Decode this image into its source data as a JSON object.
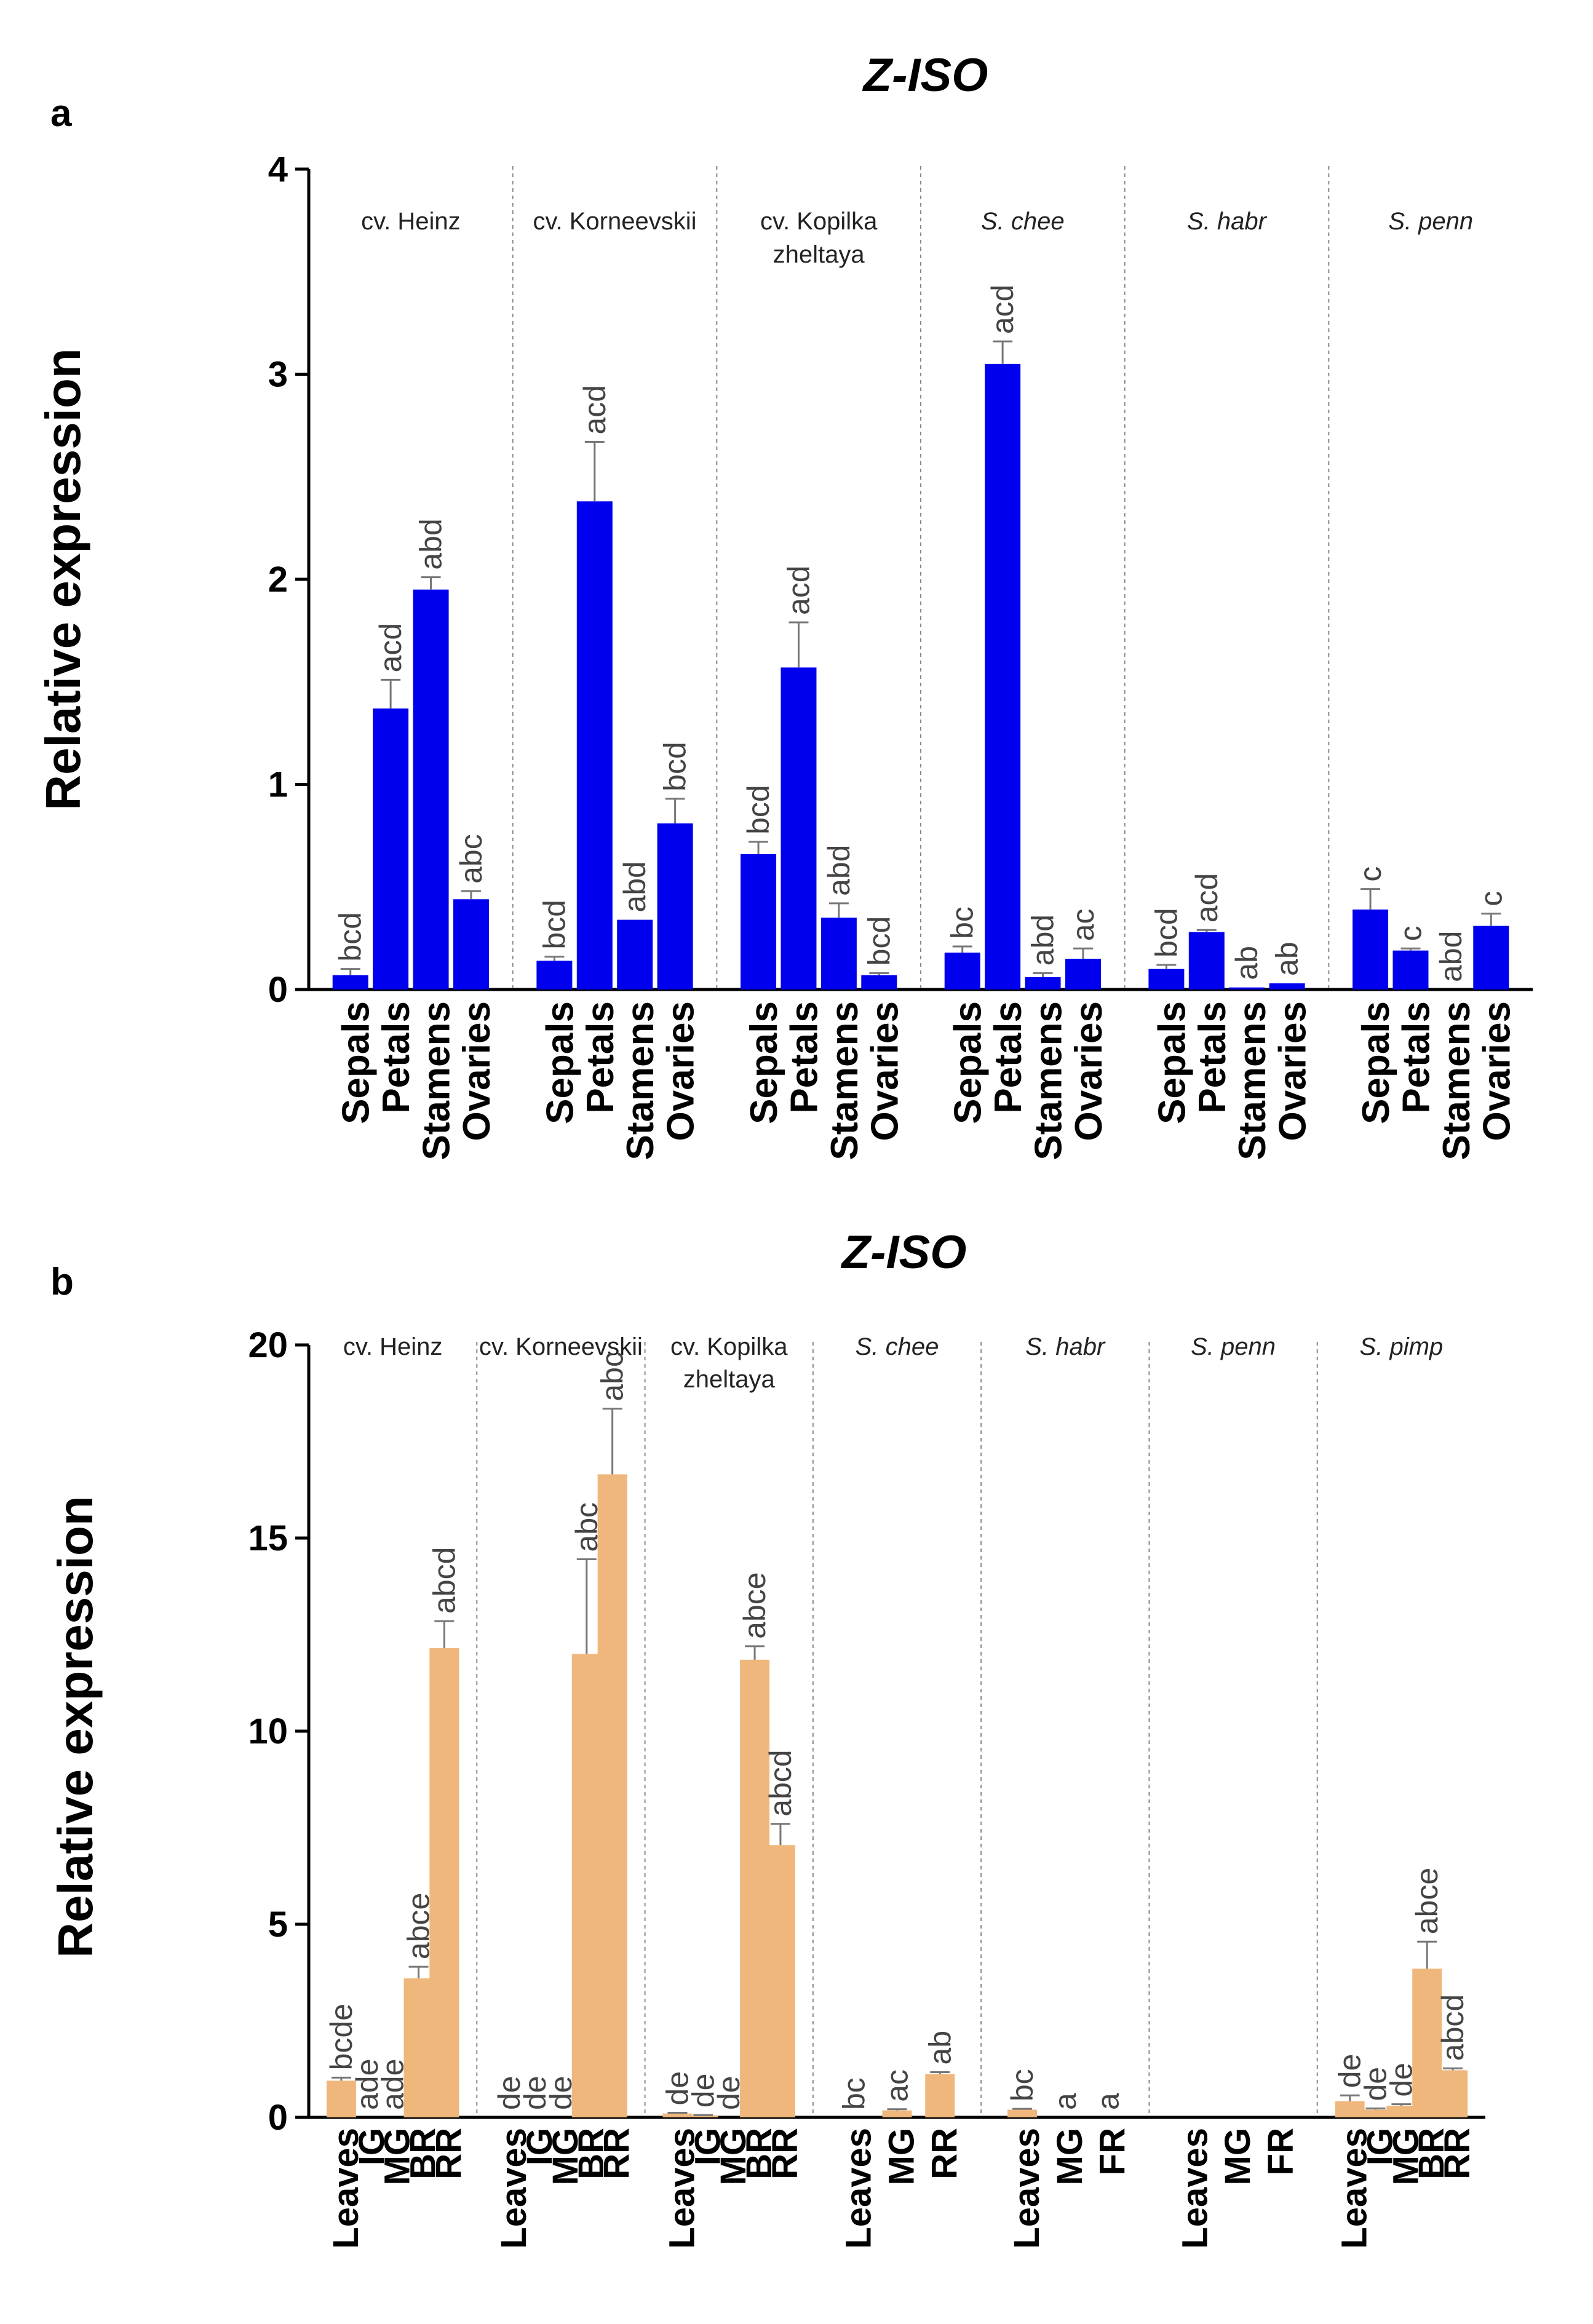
{
  "chart_data": [
    {
      "id": "a",
      "type": "bar",
      "panel_label": "a",
      "title": "Z-ISO",
      "ylabel": "Relative expression",
      "xlabel": "",
      "ylim": [
        0,
        4
      ],
      "yticks": [
        "0",
        "1",
        "2",
        "3",
        "4"
      ],
      "ytick_values": [
        0,
        1,
        2,
        3,
        4
      ],
      "bar_color": "#0000ee",
      "error_color": "#777777",
      "groups": [
        {
          "label": "cv. Heinz",
          "italic": false,
          "bars": [
            {
              "category": "Sepals",
              "value": 0.07,
              "error": 0.03,
              "sig": "bcd"
            },
            {
              "category": "Petals",
              "value": 1.37,
              "error": 0.14,
              "sig": "acd"
            },
            {
              "category": "Stamens",
              "value": 1.95,
              "error": 0.06,
              "sig": "abd"
            },
            {
              "category": "Ovaries",
              "value": 0.44,
              "error": 0.04,
              "sig": "abc"
            }
          ]
        },
        {
          "label": "cv. Korneevskii",
          "italic": false,
          "bars": [
            {
              "category": "Sepals",
              "value": 0.14,
              "error": 0.02,
              "sig": "bcd"
            },
            {
              "category": "Petals",
              "value": 2.38,
              "error": 0.29,
              "sig": "acd"
            },
            {
              "category": "Stamens",
              "value": 0.34,
              "error": 0.0,
              "sig": "abd"
            },
            {
              "category": "Ovaries",
              "value": 0.81,
              "error": 0.12,
              "sig": "bcd"
            }
          ]
        },
        {
          "label": "cv. Kopilka zheltaya",
          "italic": false,
          "bars": [
            {
              "category": "Sepals",
              "value": 0.66,
              "error": 0.06,
              "sig": "bcd"
            },
            {
              "category": "Petals",
              "value": 1.57,
              "error": 0.22,
              "sig": "acd"
            },
            {
              "category": "Stamens",
              "value": 0.35,
              "error": 0.07,
              "sig": "abd"
            },
            {
              "category": "Ovaries",
              "value": 0.07,
              "error": 0.01,
              "sig": "bcd"
            }
          ]
        },
        {
          "label": "S. chee",
          "italic": true,
          "bars": [
            {
              "category": "Sepals",
              "value": 0.18,
              "error": 0.03,
              "sig": "bc"
            },
            {
              "category": "Petals",
              "value": 3.05,
              "error": 0.11,
              "sig": "acd"
            },
            {
              "category": "Stamens",
              "value": 0.06,
              "error": 0.02,
              "sig": "abd"
            },
            {
              "category": "Ovaries",
              "value": 0.15,
              "error": 0.05,
              "sig": "ac"
            }
          ]
        },
        {
          "label": "S. habr",
          "italic": true,
          "bars": [
            {
              "category": "Sepals",
              "value": 0.1,
              "error": 0.02,
              "sig": "bcd"
            },
            {
              "category": "Petals",
              "value": 0.28,
              "error": 0.01,
              "sig": "acd"
            },
            {
              "category": "Stamens",
              "value": 0.01,
              "error": 0.0,
              "sig": "ab"
            },
            {
              "category": "Ovaries",
              "value": 0.03,
              "error": 0.0,
              "sig": "ab"
            }
          ]
        },
        {
          "label": "S. penn",
          "italic": true,
          "bars": [
            {
              "category": "Sepals",
              "value": 0.39,
              "error": 0.1,
              "sig": "c"
            },
            {
              "category": "Petals",
              "value": 0.19,
              "error": 0.01,
              "sig": "c"
            },
            {
              "category": "Stamens",
              "value": 0.0,
              "error": 0.0,
              "sig": "abd"
            },
            {
              "category": "Ovaries",
              "value": 0.31,
              "error": 0.06,
              "sig": "c"
            }
          ]
        }
      ]
    },
    {
      "id": "b",
      "type": "bar",
      "panel_label": "b",
      "title": "Z-ISO",
      "ylabel": "Relative expression",
      "xlabel": "",
      "ylim": [
        0,
        20
      ],
      "yticks": [
        "0",
        "5",
        "10",
        "15",
        "20"
      ],
      "ytick_values": [
        0,
        5,
        10,
        15,
        20
      ],
      "bar_color": "#f0b77c",
      "error_color": "#777777",
      "groups": [
        {
          "label": "cv. Heinz",
          "italic": false,
          "bars": [
            {
              "category": "Leaves",
              "value": 0.95,
              "error": 0.08,
              "sig": "bcde"
            },
            {
              "category": "IG",
              "value": 0.0,
              "error": 0.0,
              "sig": "ade"
            },
            {
              "category": "MG",
              "value": 0.0,
              "error": 0.0,
              "sig": "ade"
            },
            {
              "category": "BR",
              "value": 3.6,
              "error": 0.3,
              "sig": "abce"
            },
            {
              "category": "RR",
              "value": 12.15,
              "error": 0.7,
              "sig": "abcd"
            }
          ]
        },
        {
          "label": "cv. Korneevskii",
          "italic": false,
          "bars": [
            {
              "category": "Leaves",
              "value": 0.0,
              "error": 0.0,
              "sig": "de"
            },
            {
              "category": "IG",
              "value": 0.0,
              "error": 0.0,
              "sig": "de"
            },
            {
              "category": "MG",
              "value": 0.0,
              "error": 0.0,
              "sig": "de"
            },
            {
              "category": "BR",
              "value": 12.0,
              "error": 2.45,
              "sig": "abc"
            },
            {
              "category": "RR",
              "value": 16.65,
              "error": 1.7,
              "sig": "abc"
            }
          ]
        },
        {
          "label": "cv. Kopilka zheltaya",
          "italic": false,
          "bars": [
            {
              "category": "Leaves",
              "value": 0.1,
              "error": 0.02,
              "sig": "de"
            },
            {
              "category": "IG",
              "value": 0.05,
              "error": 0.01,
              "sig": "de"
            },
            {
              "category": "MG",
              "value": 0.0,
              "error": 0.0,
              "sig": "de"
            },
            {
              "category": "BR",
              "value": 11.85,
              "error": 0.35,
              "sig": "abce"
            },
            {
              "category": "RR",
              "value": 7.05,
              "error": 0.55,
              "sig": "abcd"
            }
          ]
        },
        {
          "label": "S. chee",
          "italic": true,
          "bars": [
            {
              "category": "Leaves",
              "value": 0.0,
              "error": 0.0,
              "sig": "bc"
            },
            {
              "category": "MG",
              "value": 0.18,
              "error": 0.03,
              "sig": "ac"
            },
            {
              "category": "RR",
              "value": 1.12,
              "error": 0.05,
              "sig": "ab"
            }
          ]
        },
        {
          "label": "S. habr",
          "italic": true,
          "bars": [
            {
              "category": "Leaves",
              "value": 0.2,
              "error": 0.02,
              "sig": "bc"
            },
            {
              "category": "MG",
              "value": 0.0,
              "error": 0.0,
              "sig": "a"
            },
            {
              "category": "FR",
              "value": 0.0,
              "error": 0.0,
              "sig": "a"
            }
          ]
        },
        {
          "label": "S. penn",
          "italic": true,
          "bars": [
            {
              "category": "Leaves",
              "value": 0.0,
              "error": 0.0,
              "sig": ""
            },
            {
              "category": "MG",
              "value": 0.0,
              "error": 0.0,
              "sig": ""
            },
            {
              "category": "FR",
              "value": 0.0,
              "error": 0.0,
              "sig": ""
            }
          ]
        },
        {
          "label": "S. pimp",
          "italic": true,
          "bars": [
            {
              "category": "Leaves",
              "value": 0.42,
              "error": 0.15,
              "sig": "de"
            },
            {
              "category": "IG",
              "value": 0.2,
              "error": 0.03,
              "sig": "de"
            },
            {
              "category": "MG",
              "value": 0.3,
              "error": 0.04,
              "sig": "de"
            },
            {
              "category": "BR",
              "value": 3.85,
              "error": 0.7,
              "sig": "abce"
            },
            {
              "category": "RR",
              "value": 1.22,
              "error": 0.05,
              "sig": "abcd"
            }
          ]
        }
      ]
    }
  ]
}
